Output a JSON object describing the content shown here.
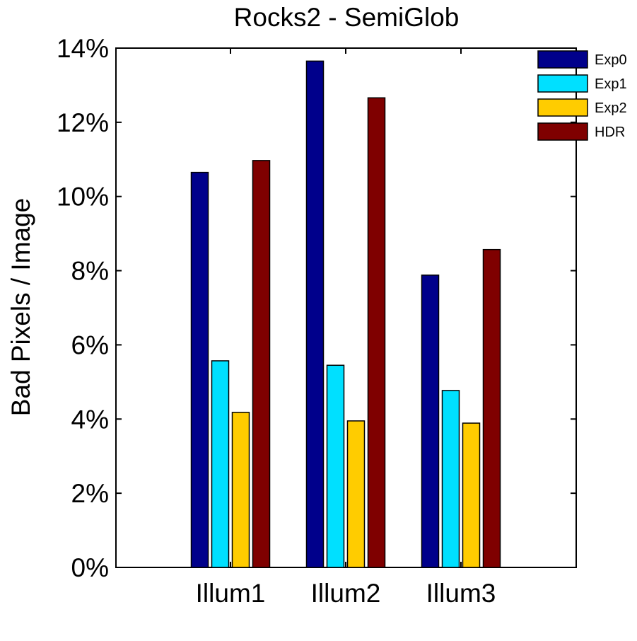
{
  "chart_data": {
    "type": "bar",
    "title": "Rocks2 - SemiGlob",
    "xlabel": "",
    "ylabel": "Bad Pixels / Image",
    "categories": [
      "Illum1",
      "Illum2",
      "Illum3"
    ],
    "ylim": [
      0,
      0.14
    ],
    "yticks": [
      0,
      0.02,
      0.04,
      0.06,
      0.08,
      0.1,
      0.12,
      0.14
    ],
    "ytick_labels": [
      "0%",
      "2%",
      "4%",
      "6%",
      "8%",
      "10%",
      "12%",
      "14%"
    ],
    "grid": false,
    "legend_position": "top-right",
    "series": [
      {
        "name": "Exp0",
        "color": "#00008b",
        "values": [
          0.1065,
          0.1365,
          0.0788
        ]
      },
      {
        "name": "Exp1",
        "color": "#00e0ff",
        "values": [
          0.0557,
          0.0545,
          0.0477
        ]
      },
      {
        "name": "Exp2",
        "color": "#ffcc00",
        "values": [
          0.0418,
          0.0395,
          0.0389
        ]
      },
      {
        "name": "HDR",
        "color": "#7f0000",
        "values": [
          0.1097,
          0.1266,
          0.0857
        ]
      }
    ]
  }
}
